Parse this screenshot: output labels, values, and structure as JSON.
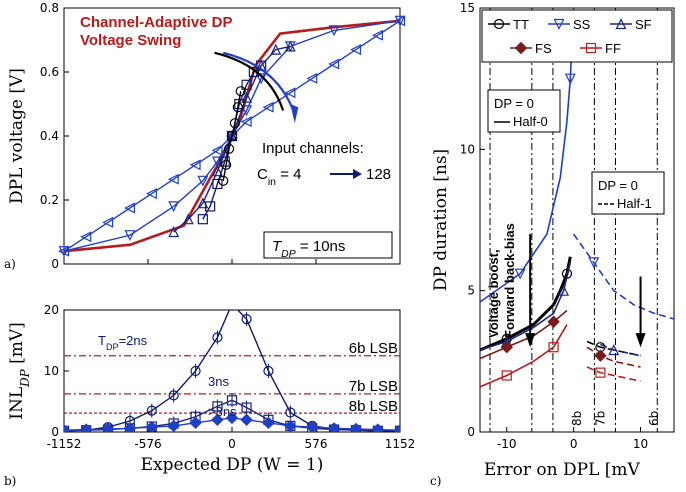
{
  "chart_data": [
    {
      "id": "a",
      "type": "line",
      "panel_label": "a)",
      "ylabel": "DPL voltage [V]",
      "xlim": [
        -1152,
        1152
      ],
      "ylim": [
        0,
        0.8
      ],
      "yticks": [
        "0",
        "0.2",
        "0.4",
        "0.6",
        "0.8"
      ],
      "grid": false,
      "annotations": {
        "title": "Channel-Adaptive DP",
        "title2": "Voltage Swing",
        "inputs": "Input channels:",
        "cin": "C",
        "cin_sub": "in",
        "cin_eq": " = 4 ",
        "cin_to": "128",
        "tdp": "T",
        "tdp_sub": "DP",
        "tdp_eq": " = 10ns"
      },
      "series": [
        {
          "color": "#b71c1c",
          "marker": "none",
          "x": [
            -1152,
            -700,
            -330,
            -160,
            -60,
            0,
            60,
            160,
            330,
            700,
            1152
          ],
          "y": [
            0.04,
            0.06,
            0.12,
            0.26,
            0.34,
            0.4,
            0.46,
            0.62,
            0.72,
            0.74,
            0.76
          ]
        },
        {
          "color": "#1f3fc4",
          "marker": "tri-left",
          "x": [
            -1152,
            -1000,
            -850,
            -700,
            -550,
            -400,
            -250,
            -100,
            0,
            100,
            250,
            400,
            550,
            700,
            850,
            1000,
            1152
          ],
          "y": [
            0.04,
            0.085,
            0.13,
            0.175,
            0.22,
            0.265,
            0.31,
            0.355,
            0.4,
            0.445,
            0.49,
            0.535,
            0.58,
            0.625,
            0.67,
            0.715,
            0.76
          ]
        },
        {
          "color": "#1f3fc4",
          "marker": "tri-down",
          "x": [
            -1152,
            -700,
            -400,
            -200,
            -100,
            0,
            100,
            200,
            400,
            700,
            1152
          ],
          "y": [
            0.04,
            0.09,
            0.18,
            0.26,
            0.32,
            0.4,
            0.48,
            0.58,
            0.68,
            0.73,
            0.76
          ]
        },
        {
          "color": "#1a237e",
          "marker": "tri-up",
          "x": [
            -400,
            -300,
            -200,
            -100,
            0,
            100,
            200,
            300,
            400
          ],
          "y": [
            0.1,
            0.14,
            0.19,
            0.29,
            0.4,
            0.52,
            0.62,
            0.67,
            0.68
          ]
        },
        {
          "color": "#0d1b6e",
          "marker": "square",
          "x": [
            -200,
            -150,
            -100,
            -50,
            0,
            50,
            100,
            150,
            200
          ],
          "y": [
            0.14,
            0.18,
            0.25,
            0.32,
            0.4,
            0.5,
            0.56,
            0.6,
            0.62
          ]
        },
        {
          "color": "#000000",
          "marker": "circle",
          "x": [
            -60,
            -40,
            -20,
            0,
            20,
            40,
            60
          ],
          "y": [
            0.26,
            0.31,
            0.36,
            0.4,
            0.44,
            0.49,
            0.54
          ]
        }
      ]
    },
    {
      "id": "b",
      "type": "line",
      "panel_label": "b)",
      "xlabel": "Expected DP (W = 1)",
      "ylabel": "INL",
      "ylabel_sub": "DP",
      "ylabel_unit": " [mV]",
      "xlim": [
        -1152,
        1152
      ],
      "ylim": [
        0,
        20
      ],
      "xticks": [
        "-1152",
        "-576",
        "0",
        "576",
        "1152"
      ],
      "yticks": [
        "0",
        "10",
        "20"
      ],
      "reference_lines": [
        {
          "label": "6b LSB",
          "y": 12.5,
          "color": "#b71c1c"
        },
        {
          "label": "7b LSB",
          "y": 6.25,
          "color": "#b71c1c"
        },
        {
          "label": "8b LSB",
          "y": 3.1,
          "color": "#b71c1c"
        }
      ],
      "annotations": {
        "t2": "T",
        "t2_sub": "DP",
        "t2_eq": "=2ns",
        "t3": "3ns",
        "t4": ">3ns"
      },
      "series": [
        {
          "color": "#0d1b6e",
          "marker": "circle",
          "x": [
            -1152,
            -1000,
            -850,
            -700,
            -550,
            -400,
            -250,
            -100,
            0,
            100,
            250,
            400,
            550,
            700,
            850,
            1000,
            1152
          ],
          "y": [
            0.2,
            0.3,
            0.8,
            1.8,
            3.5,
            6.0,
            10.0,
            15.5,
            21.0,
            18.5,
            10.0,
            3.2,
            1.0,
            0.5,
            0.3,
            0.2,
            0.2
          ]
        },
        {
          "color": "#1a237e",
          "marker": "square",
          "x": [
            -1152,
            -1000,
            -850,
            -700,
            -550,
            -400,
            -250,
            -100,
            0,
            100,
            250,
            400,
            550,
            700,
            850,
            1000,
            1152
          ],
          "y": [
            0.2,
            0.3,
            0.4,
            0.6,
            0.9,
            1.4,
            2.5,
            4.2,
            5.2,
            4.0,
            2.0,
            1.0,
            0.6,
            0.4,
            0.3,
            0.2,
            0.2
          ]
        },
        {
          "color": "#1f3fc4",
          "marker": "diamond",
          "x": [
            -1152,
            -1000,
            -850,
            -700,
            -550,
            -400,
            -250,
            -100,
            0,
            100,
            250,
            400,
            550,
            700,
            850,
            1000,
            1152
          ],
          "y": [
            0.3,
            0.4,
            0.5,
            0.6,
            0.8,
            1.0,
            1.5,
            2.0,
            2.3,
            2.0,
            1.5,
            1.0,
            0.8,
            0.6,
            0.5,
            0.4,
            0.3
          ]
        }
      ]
    },
    {
      "id": "c",
      "type": "line",
      "panel_label": "c)",
      "xlabel": "Error on DPL [mV",
      "ylabel": "DP duration [ns]",
      "xlim": [
        -14,
        15
      ],
      "ylim": [
        0,
        15
      ],
      "xticks": [
        "-10",
        "0",
        "10"
      ],
      "yticks": [
        "0",
        "5",
        "10",
        "15"
      ],
      "vlines": [
        -12.5,
        -6.25,
        -3.1,
        3.1,
        6.25,
        12.5
      ],
      "vline_labels": [
        "8b",
        "7b",
        "6b"
      ],
      "legend": {
        "placement": "top",
        "entries": [
          "TT",
          "SS",
          "SF",
          "FS",
          "FF"
        ]
      },
      "boxes": [
        {
          "title": "DP = 0",
          "entry": "Half-0"
        },
        {
          "title": "DP = 0",
          "entry": "Half-1"
        }
      ],
      "annotations": {
        "line1": "Voltage boost,",
        "line2": "Forward back-bias"
      },
      "series": [
        {
          "name": "TT",
          "color": "#000000",
          "x": [
            -14,
            -10,
            -6,
            -3,
            -2,
            -1,
            -0.5
          ],
          "y": [
            2.9,
            3.3,
            3.8,
            4.5,
            5.0,
            5.6,
            6.2
          ]
        },
        {
          "name": "SS",
          "color": "#1f3fc4",
          "x": [
            -14,
            -8,
            -4,
            -2,
            -1,
            -0.5,
            0
          ],
          "y": [
            4.6,
            5.6,
            7.0,
            9.0,
            11.0,
            12.5,
            15.0
          ]
        },
        {
          "name": "SF",
          "color": "#1a237e",
          "x": [
            -14,
            -10,
            -6,
            -3,
            -1.5,
            -0.5
          ],
          "y": [
            2.9,
            3.2,
            3.7,
            4.2,
            5.0,
            6.0
          ]
        },
        {
          "name": "FS",
          "color": "#7a1a1a",
          "x": [
            -14,
            -10,
            -6,
            -3,
            -1
          ],
          "y": [
            2.6,
            3.0,
            3.4,
            3.9,
            4.3
          ]
        },
        {
          "name": "FF",
          "color": "#b71c1c",
          "x": [
            -14,
            -10,
            -6,
            -3,
            -1
          ],
          "y": [
            1.6,
            2.0,
            2.5,
            3.0,
            3.8
          ]
        }
      ],
      "series_half1": [
        {
          "name": "SS",
          "color": "#1f3fc4",
          "x": [
            0,
            3,
            6,
            9,
            12,
            15
          ],
          "y": [
            7.0,
            6.0,
            5.0,
            4.5,
            4.2,
            4.0
          ]
        },
        {
          "name": "TT",
          "color": "#000000",
          "x": [
            2,
            4,
            6,
            8,
            10
          ],
          "y": [
            3.2,
            3.0,
            2.9,
            2.8,
            2.7
          ]
        },
        {
          "name": "SF",
          "color": "#1a237e",
          "x": [
            4,
            6,
            8,
            10
          ],
          "y": [
            3.1,
            2.9,
            2.8,
            2.7
          ]
        },
        {
          "name": "FS",
          "color": "#7a1a1a",
          "x": [
            2,
            4,
            6,
            8,
            10
          ],
          "y": [
            3.0,
            2.7,
            2.5,
            2.4,
            2.3
          ]
        },
        {
          "name": "FF",
          "color": "#b71c1c",
          "x": [
            2,
            4,
            6,
            8,
            10
          ],
          "y": [
            2.3,
            2.1,
            2.0,
            1.9,
            1.8
          ]
        }
      ]
    }
  ]
}
